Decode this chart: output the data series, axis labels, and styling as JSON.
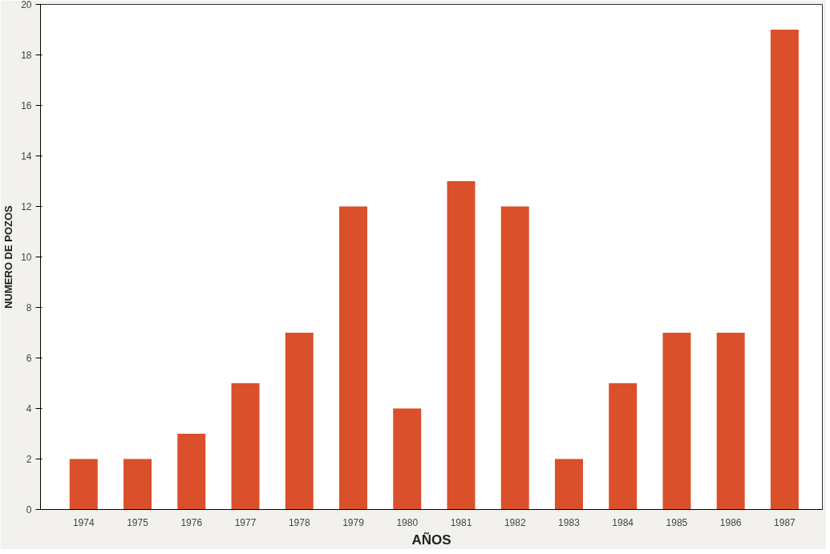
{
  "chart_data": {
    "type": "bar",
    "xlabel": "AÑOS",
    "ylabel": "NUMERO DE POZOS",
    "categories": [
      "1974",
      "1975",
      "1976",
      "1977",
      "1978",
      "1979",
      "1980",
      "1981",
      "1982",
      "1983",
      "1984",
      "1985",
      "1986",
      "1987"
    ],
    "values": [
      2,
      2,
      3,
      5,
      7,
      12,
      4,
      13,
      12,
      2,
      5,
      7,
      7,
      19
    ],
    "color": "#d9502a",
    "ylim": [
      0,
      20
    ],
    "yticks": [
      0,
      2,
      4,
      6,
      8,
      10,
      12,
      14,
      16,
      18,
      20
    ],
    "grid": false
  }
}
